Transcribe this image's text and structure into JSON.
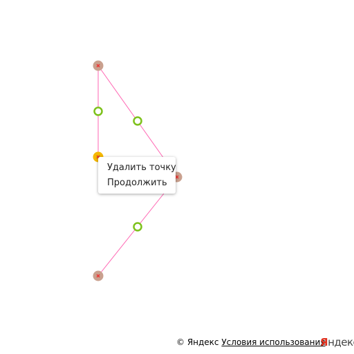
{
  "map": {
    "polyline_color": "#ff66b3",
    "vertex_color": "#c9a08e",
    "vertex_active_color": "#f5b800",
    "midpoint_color": "#7dc11b",
    "vertex_icon": "close-icon"
  },
  "context_menu": {
    "items": [
      {
        "label": "Удалить точку"
      },
      {
        "label": "Продолжить"
      }
    ]
  },
  "copyright": {
    "owner": "© Яндекс",
    "terms_link": "Условия использования"
  },
  "logo": {
    "first": "Я",
    "rest": "ндекс"
  }
}
